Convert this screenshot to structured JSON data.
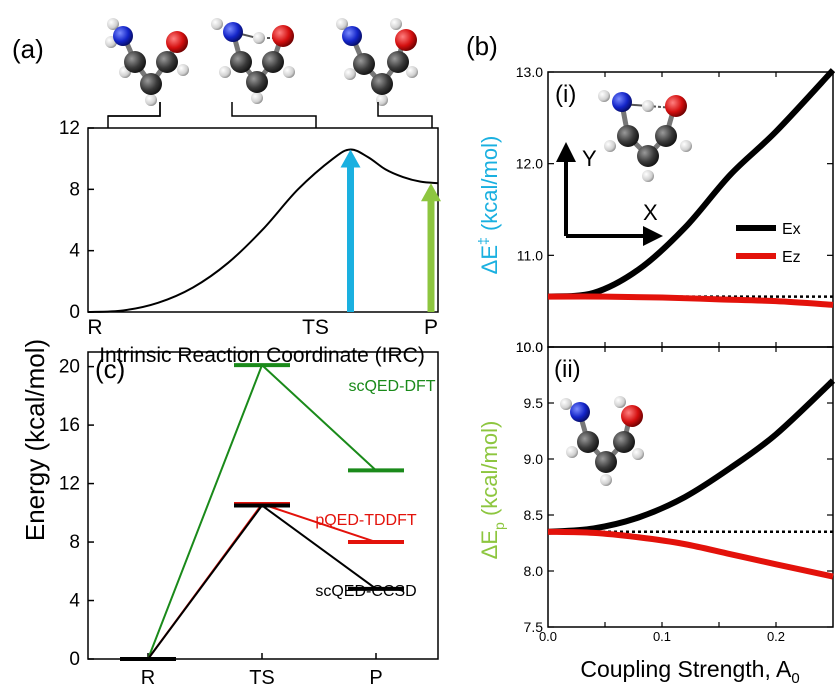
{
  "figure": {
    "panel_labels": {
      "a": "(a)",
      "b": "(b)",
      "c": "(c)",
      "bi": "(i)",
      "bii": "(ii)"
    },
    "shared_ylabel": "Energy (kcal/mol)",
    "colors": {
      "cyan": "#1ab0e0",
      "green_light": "#8dc63f",
      "green": "#1a8a1a",
      "red": "#e3120b",
      "black": "#000000"
    },
    "molecule_icons": [
      "reactant-molecule-icon",
      "transition-state-molecule-icon",
      "product-molecule-icon"
    ],
    "axis_label_y_b": "Y",
    "axis_label_x_b": "X"
  },
  "chart_data": [
    {
      "id": "a",
      "type": "line",
      "xlabel": "Intrinsic Reaction Coordinate (IRC)",
      "ylabel": "Energy (kcal/mol)",
      "ylim": [
        0,
        12
      ],
      "yticks": [
        "0",
        "4",
        "8",
        "12"
      ],
      "xticks": [
        "R",
        "TS",
        "P"
      ],
      "curve": {
        "x": [
          0,
          0.1,
          0.2,
          0.3,
          0.4,
          0.5,
          0.6,
          0.7,
          0.75,
          0.8,
          0.85,
          0.9,
          0.95,
          1.0
        ],
        "y": [
          0,
          0.1,
          0.6,
          1.6,
          3.2,
          5.4,
          8.0,
          10.0,
          10.6,
          10.1,
          9.3,
          8.8,
          8.5,
          8.4
        ]
      },
      "arrows": [
        {
          "name": "barrier-arrow",
          "x": 0.75,
          "y": 10.6,
          "color": "#1ab0e0"
        },
        {
          "name": "reaction-energy-arrow",
          "x": 0.98,
          "y": 8.4,
          "color": "#8dc63f"
        }
      ]
    },
    {
      "id": "c",
      "type": "line",
      "ylim": [
        0,
        21
      ],
      "yticks": [
        "0",
        "4",
        "8",
        "12",
        "16",
        "20"
      ],
      "xticks": [
        "R",
        "TS",
        "P"
      ],
      "series": [
        {
          "name": "scQED-DFT",
          "color": "#1a8a1a",
          "values": [
            0,
            20.1,
            12.9
          ]
        },
        {
          "name": "pQED-TDDFT",
          "color": "#e3120b",
          "values": [
            0,
            10.6,
            8.0
          ]
        },
        {
          "name": "scQED-CCSD",
          "color": "#000000",
          "values": [
            0,
            10.5,
            4.8
          ]
        }
      ]
    },
    {
      "id": "b-i",
      "type": "line",
      "ylabel_parts": {
        "pre": "ΔE",
        "sup": "‡",
        "post": " (kcal/mol)"
      },
      "ylim": [
        10.0,
        13.0
      ],
      "yticks": [
        "10.0",
        "11.0",
        "12.0",
        "13.0"
      ],
      "xlim": [
        0,
        0.25
      ],
      "legend": [
        "Ex",
        "Ez"
      ],
      "legend_position": "right",
      "series": [
        {
          "name": "Ex",
          "color": "#000000",
          "x": [
            0,
            0.04,
            0.08,
            0.12,
            0.16,
            0.2,
            0.25
          ],
          "values": [
            10.55,
            10.59,
            10.85,
            11.3,
            11.88,
            12.35,
            13.02
          ]
        },
        {
          "name": "Ez",
          "color": "#e3120b",
          "x": [
            0,
            0.05,
            0.1,
            0.15,
            0.2,
            0.25
          ],
          "values": [
            10.55,
            10.55,
            10.54,
            10.52,
            10.5,
            10.46
          ]
        }
      ],
      "reference_line": 10.55
    },
    {
      "id": "b-ii",
      "type": "line",
      "xlabel": "Coupling Strength, A",
      "xlabel_sub": "0",
      "ylabel_parts": {
        "pre": "ΔE",
        "sub": "p",
        "post": " (kcal/mol)"
      },
      "ylim": [
        7.5,
        10.0
      ],
      "yticks": [
        "7.5",
        "8.0",
        "8.5",
        "9.0",
        "9.5",
        "10.0"
      ],
      "xlim": [
        0,
        0.25
      ],
      "xticks": [
        "0.0",
        "0.1",
        "0.2"
      ],
      "series": [
        {
          "name": "Ex",
          "color": "#000000",
          "x": [
            0,
            0.04,
            0.08,
            0.12,
            0.16,
            0.2,
            0.25
          ],
          "values": [
            8.35,
            8.38,
            8.48,
            8.66,
            8.92,
            9.22,
            9.7
          ]
        },
        {
          "name": "Ez",
          "color": "#e3120b",
          "x": [
            0,
            0.04,
            0.08,
            0.12,
            0.16,
            0.2,
            0.25
          ],
          "values": [
            8.35,
            8.34,
            8.3,
            8.24,
            8.15,
            8.06,
            7.95
          ]
        }
      ],
      "reference_line": 8.35
    }
  ]
}
